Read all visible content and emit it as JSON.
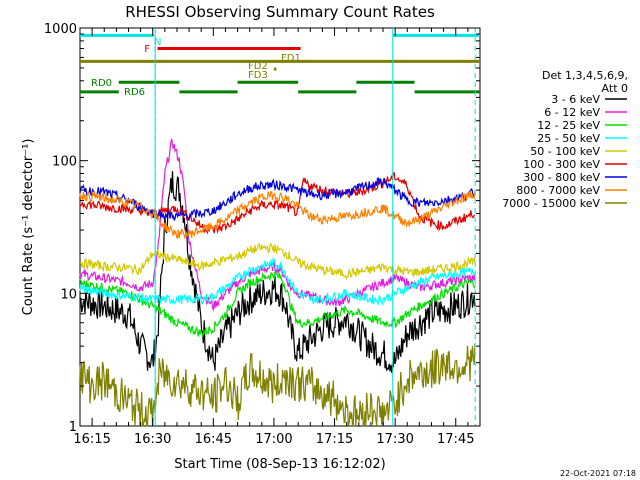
{
  "chart_data": {
    "type": "line",
    "title": "RHESSI Observing Summary Count Rates",
    "xlabel": "Start Time (08-Sep-13 16:12:02)",
    "ylabel": "Count Rate (s⁻¹ detector⁻¹)",
    "yscale": "log",
    "ylim": [
      1,
      1000
    ],
    "xlim_minutes": [
      16.2,
      17.85
    ],
    "x_ticks": [
      "16:15",
      "16:30",
      "16:45",
      "17:00",
      "17:15",
      "17:30",
      "17:45"
    ],
    "x_tick_values": [
      16.25,
      16.5,
      16.75,
      17.0,
      17.25,
      17.5,
      17.75
    ],
    "y_ticks": [
      "1",
      "10",
      "100",
      "1000"
    ],
    "y_tick_values": [
      1,
      10,
      100,
      1000
    ],
    "legend": {
      "placement": "right",
      "header": [
        "Det 1,3,4,5,6,9,",
        "Att 0"
      ],
      "entries": [
        {
          "label": "3 - 6 keV",
          "color": "#000000"
        },
        {
          "label": "6 - 12 keV",
          "color": "#e020e0"
        },
        {
          "label": "12 - 25 keV",
          "color": "#00e000"
        },
        {
          "label": "25 - 50 keV",
          "color": "#00ffff"
        },
        {
          "label": "50 - 100 keV",
          "color": "#d4c800"
        },
        {
          "label": "100 - 300 keV",
          "color": "#e00000"
        },
        {
          "label": "300 - 800 keV",
          "color": "#0000e0"
        },
        {
          "label": "800 - 7000 keV",
          "color": "#ff8000"
        },
        {
          "label": "7000 - 15000 keV",
          "color": "#808000"
        }
      ]
    },
    "flags": [
      {
        "label": "N",
        "color": "#00e5e5",
        "y": 880,
        "segments": [
          [
            16.2,
            16.505
          ],
          [
            17.49,
            17.85
          ]
        ]
      },
      {
        "label": "F",
        "color": "#e00000",
        "y": 700,
        "segments": [
          [
            16.52,
            17.11
          ]
        ]
      },
      {
        "label": "FD1",
        "color": "#808000",
        "y": 560,
        "segments": [
          [
            16.2,
            17.85
          ]
        ]
      },
      {
        "label": "FD2",
        "color": "#808000",
        "y": 490,
        "segments": [
          [
            17.0,
            17.01
          ]
        ]
      },
      {
        "label": "FD3",
        "color": "#808000",
        "y": 430,
        "segments": []
      },
      {
        "label": "RD0",
        "color": "#008000",
        "y": 390,
        "segments": [
          [
            16.36,
            16.61
          ],
          [
            16.85,
            17.1
          ],
          [
            17.34,
            17.58
          ]
        ]
      },
      {
        "label": "RD6",
        "color": "#008000",
        "y": 330,
        "segments": [
          [
            16.2,
            16.36
          ],
          [
            16.61,
            16.85
          ],
          [
            17.1,
            17.34
          ],
          [
            17.58,
            17.85
          ]
        ]
      }
    ],
    "vlines": [
      16.51,
      17.49
    ],
    "dashed_vlines": [
      16.51,
      17.83
    ],
    "series": [
      {
        "name": "3 - 6 keV",
        "color": "#000000",
        "x": [
          16.2,
          16.3,
          16.4,
          16.45,
          16.5,
          16.52,
          16.55,
          16.58,
          16.61,
          16.63,
          16.65,
          16.7,
          16.75,
          16.8,
          16.85,
          16.9,
          16.95,
          17.0,
          17.03,
          17.05,
          17.07,
          17.1,
          17.15,
          17.2,
          17.25,
          17.3,
          17.35,
          17.4,
          17.45,
          17.5,
          17.55,
          17.6,
          17.65,
          17.7,
          17.75,
          17.8,
          17.83
        ],
        "y": [
          9,
          8,
          7,
          4,
          3,
          5,
          30,
          70,
          60,
          40,
          20,
          6,
          3,
          5,
          7,
          9,
          10,
          11,
          10,
          8,
          5,
          3.5,
          4.5,
          5.5,
          6,
          6.5,
          5,
          4,
          3.5,
          3,
          5,
          6,
          7,
          7.5,
          8,
          9,
          10
        ]
      },
      {
        "name": "6 - 12 keV",
        "color": "#e020e0",
        "x": [
          16.2,
          16.3,
          16.4,
          16.45,
          16.5,
          16.52,
          16.55,
          16.58,
          16.61,
          16.63,
          16.65,
          16.7,
          16.75,
          16.8,
          16.85,
          16.9,
          16.95,
          17.0,
          17.03,
          17.05,
          17.07,
          17.1,
          17.15,
          17.2,
          17.25,
          17.3,
          17.35,
          17.4,
          17.45,
          17.5,
          17.55,
          17.6,
          17.65,
          17.7,
          17.75,
          17.8,
          17.83
        ],
        "y": [
          14,
          13,
          12,
          11,
          12,
          20,
          80,
          140,
          100,
          60,
          25,
          10,
          8,
          10,
          12,
          14,
          15,
          16,
          15,
          13,
          11,
          10,
          9.5,
          9,
          8.5,
          9,
          10,
          11,
          12,
          13,
          12,
          11,
          11.5,
          12,
          12.5,
          13,
          13
        ]
      },
      {
        "name": "12 - 25 keV",
        "color": "#00e000",
        "x": [
          16.2,
          16.3,
          16.4,
          16.5,
          16.55,
          16.6,
          16.65,
          16.7,
          16.75,
          16.8,
          16.85,
          16.9,
          16.95,
          17.0,
          17.03,
          17.05,
          17.07,
          17.1,
          17.15,
          17.2,
          17.25,
          17.3,
          17.35,
          17.4,
          17.45,
          17.5,
          17.55,
          17.6,
          17.65,
          17.7,
          17.75,
          17.8,
          17.83
        ],
        "y": [
          12,
          11,
          10,
          8,
          7,
          6,
          5.5,
          5,
          5.5,
          7,
          10,
          12,
          13,
          14,
          13,
          11,
          8,
          6,
          6,
          6.5,
          7,
          7.5,
          7,
          6.5,
          6,
          6,
          7,
          8,
          9,
          10,
          11,
          12,
          12
        ]
      },
      {
        "name": "25 - 50 keV",
        "color": "#00ffff",
        "x": [
          16.2,
          16.3,
          16.4,
          16.5,
          16.55,
          16.6,
          16.65,
          16.7,
          16.75,
          16.8,
          16.85,
          16.9,
          16.95,
          17.0,
          17.03,
          17.05,
          17.07,
          17.1,
          17.15,
          17.2,
          17.25,
          17.3,
          17.35,
          17.4,
          17.45,
          17.5,
          17.55,
          17.6,
          17.65,
          17.7,
          17.75,
          17.8,
          17.83
        ],
        "y": [
          11,
          10,
          9.5,
          9,
          9,
          9,
          9,
          9,
          9.5,
          11,
          13,
          15,
          16,
          17,
          16,
          14,
          12,
          10,
          9,
          9,
          9.5,
          10,
          9.5,
          9,
          9,
          10,
          11,
          12,
          13,
          13.5,
          14,
          14.5,
          15
        ]
      },
      {
        "name": "50 - 100 keV",
        "color": "#d4c800",
        "x": [
          16.2,
          16.3,
          16.4,
          16.45,
          16.5,
          16.55,
          16.6,
          16.65,
          16.7,
          16.75,
          16.8,
          16.85,
          16.9,
          16.95,
          17.0,
          17.05,
          17.1,
          17.15,
          17.2,
          17.25,
          17.3,
          17.35,
          17.4,
          17.45,
          17.5,
          17.55,
          17.6,
          17.65,
          17.7,
          17.75,
          17.8,
          17.83
        ],
        "y": [
          17,
          16,
          15.5,
          15,
          20,
          19,
          18,
          17,
          16,
          17,
          18,
          19,
          21,
          22,
          22,
          20,
          17,
          16,
          15,
          14.5,
          14,
          14.5,
          15,
          16,
          15,
          14.5,
          14.5,
          15,
          15.5,
          16,
          17,
          17
        ]
      },
      {
        "name": "100 - 300 keV",
        "color": "#e00000",
        "x": [
          16.2,
          16.3,
          16.4,
          16.45,
          16.5,
          16.55,
          16.6,
          16.65,
          16.7,
          16.75,
          16.8,
          16.85,
          16.9,
          16.95,
          17.0,
          17.05,
          17.1,
          17.12,
          17.15,
          17.2,
          17.25,
          17.3,
          17.35,
          17.4,
          17.45,
          17.5,
          17.55,
          17.6,
          17.65,
          17.7,
          17.75,
          17.8,
          17.83
        ],
        "y": [
          48,
          45,
          43,
          42,
          40,
          42,
          44,
          38,
          32,
          30,
          32,
          36,
          42,
          46,
          47,
          45,
          40,
          70,
          65,
          60,
          58,
          56,
          58,
          62,
          68,
          76,
          65,
          38,
          34,
          32,
          35,
          38,
          41
        ]
      },
      {
        "name": "300 - 800 keV",
        "color": "#0000e0",
        "x": [
          16.2,
          16.3,
          16.4,
          16.45,
          16.5,
          16.55,
          16.6,
          16.65,
          16.7,
          16.75,
          16.8,
          16.85,
          16.9,
          16.95,
          17.0,
          17.05,
          17.1,
          17.15,
          17.2,
          17.25,
          17.3,
          17.35,
          17.4,
          17.45,
          17.5,
          17.55,
          17.6,
          17.65,
          17.7,
          17.75,
          17.8,
          17.83
        ],
        "y": [
          60,
          58,
          50,
          45,
          40,
          39,
          38,
          39,
          40,
          42,
          48,
          56,
          62,
          65,
          66,
          64,
          60,
          56,
          55,
          56,
          58,
          62,
          66,
          70,
          60,
          50,
          48,
          48,
          50,
          52,
          55,
          58
        ]
      },
      {
        "name": "800 - 7000 keV",
        "color": "#ff8000",
        "x": [
          16.2,
          16.3,
          16.4,
          16.45,
          16.5,
          16.55,
          16.6,
          16.65,
          16.7,
          16.75,
          16.8,
          16.85,
          16.9,
          16.95,
          17.0,
          17.05,
          17.1,
          17.15,
          17.2,
          17.25,
          17.3,
          17.35,
          17.4,
          17.45,
          17.5,
          17.55,
          17.6,
          17.65,
          17.7,
          17.75,
          17.8,
          17.83
        ],
        "y": [
          55,
          52,
          48,
          45,
          40,
          32,
          28,
          28,
          30,
          32,
          36,
          42,
          48,
          53,
          55,
          52,
          45,
          38,
          36,
          37,
          38,
          40,
          42,
          44,
          38,
          34,
          36,
          40,
          45,
          50,
          54,
          57
        ]
      },
      {
        "name": "7000 - 15000 keV",
        "color": "#808000",
        "x": [
          16.2,
          16.25,
          16.3,
          16.35,
          16.4,
          16.45,
          16.5,
          16.53,
          16.6,
          16.65,
          16.7,
          16.75,
          16.8,
          16.85,
          16.9,
          16.95,
          17.0,
          17.05,
          17.1,
          17.15,
          17.2,
          17.25,
          17.3,
          17.35,
          17.4,
          17.45,
          17.5,
          17.55,
          17.6,
          17.65,
          17.7,
          17.75,
          17.8,
          17.83
        ],
        "y": [
          2.5,
          2,
          2.2,
          1.8,
          1.5,
          1.3,
          1.2,
          2.5,
          2.2,
          2,
          1.8,
          1.6,
          2.2,
          1.5,
          2.6,
          2.3,
          2,
          2.4,
          2.1,
          2,
          1.8,
          1.6,
          1.3,
          1.2,
          1.4,
          1.2,
          1.5,
          2.3,
          2.5,
          2.6,
          3,
          2.8,
          3,
          3.2
        ]
      }
    ],
    "footer_date": "22-Oct-2021 07:18"
  }
}
